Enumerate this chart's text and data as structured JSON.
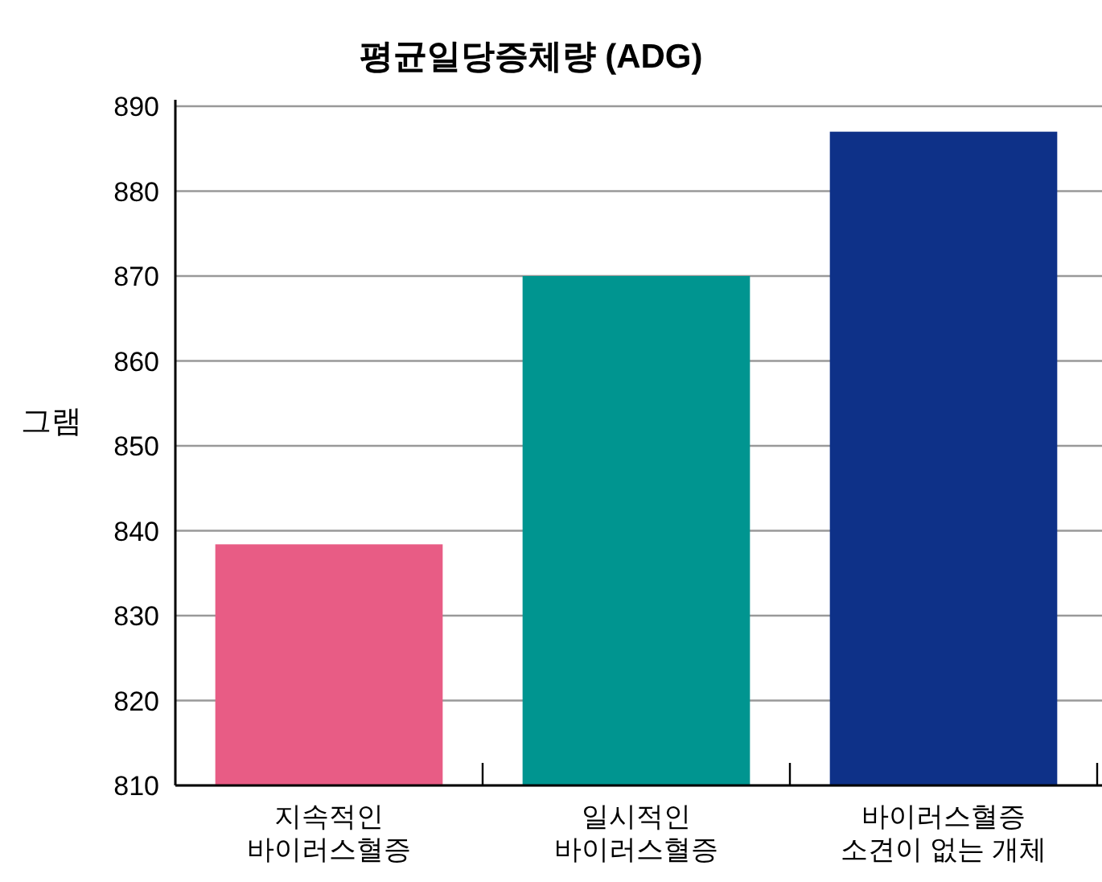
{
  "chart_data": {
    "type": "bar",
    "title": "평균일당증체량 (ADG)",
    "ylabel": "그램",
    "categories": [
      "지속적인\n바이러스혈증",
      "일시적인\n바이러스혈증",
      "바이러스혈증\n소견이 없는 개체"
    ],
    "values": [
      838.4,
      870,
      887
    ],
    "colors": [
      "#e85c85",
      "#009590",
      "#0e3188"
    ],
    "ylim": [
      810,
      890
    ],
    "yticks": [
      810,
      820,
      830,
      840,
      850,
      860,
      870,
      880,
      890
    ],
    "grid": "y"
  }
}
